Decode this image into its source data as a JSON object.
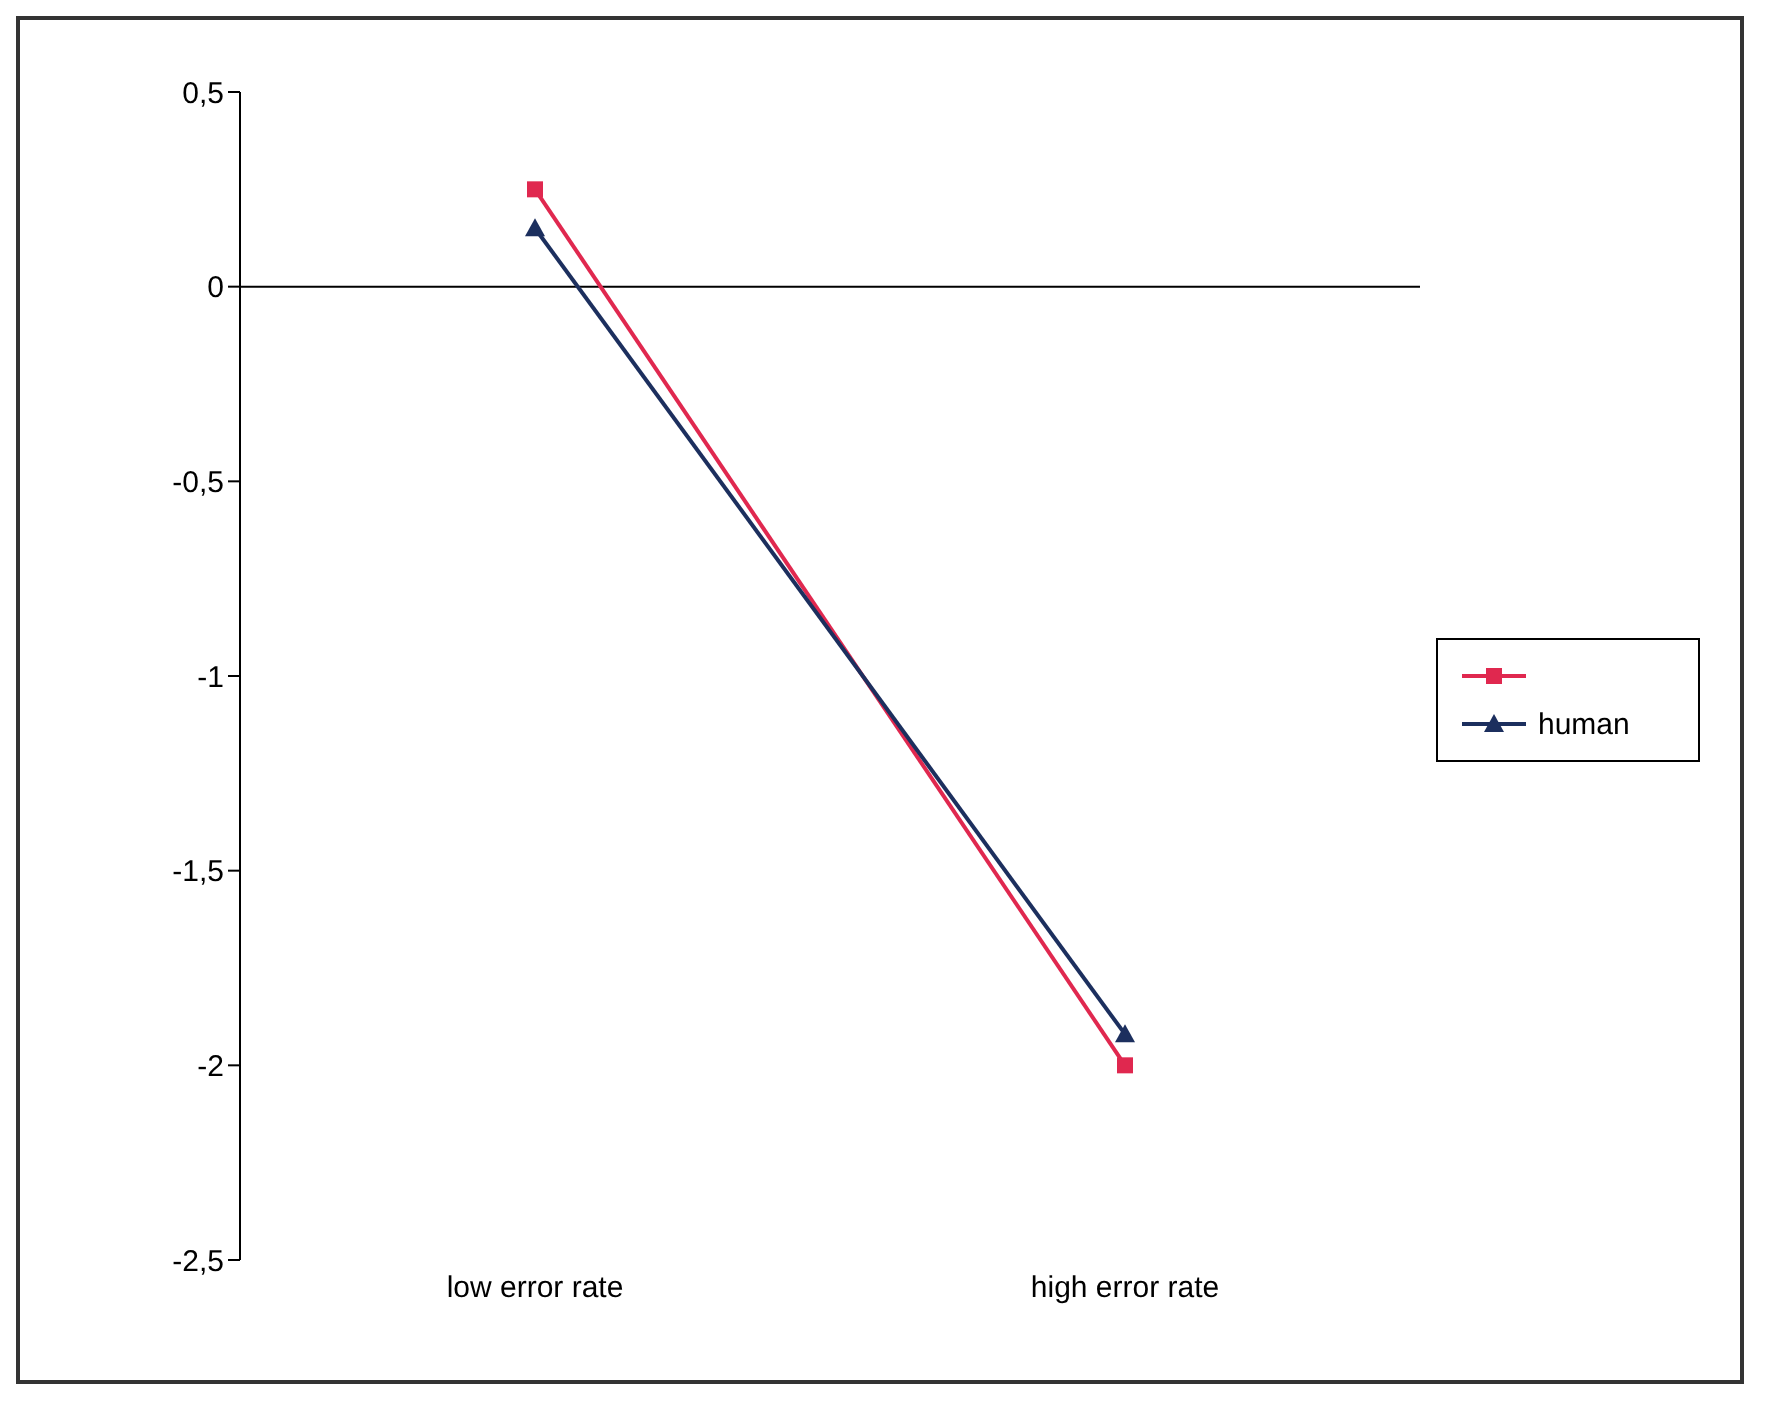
{
  "chart_data": {
    "type": "line",
    "categories": [
      "low error rate",
      "high error rate"
    ],
    "series": [
      {
        "color": "#e0284f",
        "marker": "square",
        "values": [
          0.25,
          -2
        ]
      },
      {
        "name": "human",
        "color": "#1c2f5e",
        "marker": "triangle",
        "values": [
          0.15,
          -1.92
        ]
      }
    ],
    "ylim": [
      -2.5,
      0.5
    ],
    "yticks": [
      {
        "value": 0.5,
        "label": "0,5"
      },
      0,
      {
        "value": -0.5,
        "label": "-0,5"
      },
      -1,
      {
        "value": -1.5,
        "label": "-1,5"
      },
      -2,
      {
        "value": -2.5,
        "label": "-2,5"
      }
    ],
    "ref_lines": [
      {
        "axis": "y",
        "value": 0,
        "color": "#000000"
      }
    ],
    "legend": "right",
    "grid": false
  }
}
